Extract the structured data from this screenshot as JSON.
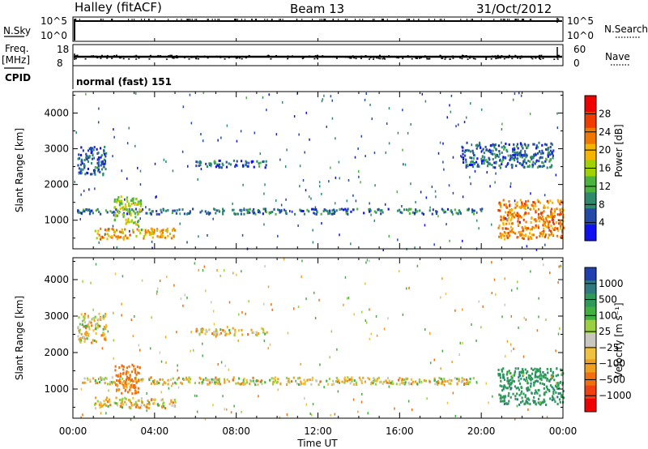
{
  "header": {
    "station": "Halley (fitACF)",
    "beam": "Beam 13",
    "date": "31/Oct/2012"
  },
  "strip": {
    "nsky_label": "N.Sky",
    "nsky_ticks": [
      "10^5",
      "10^0"
    ],
    "nsearch_label": "N.Search",
    "freq_label_1": "Freq.",
    "freq_label_2": "[MHz]",
    "freq_ticks": [
      "18",
      "8"
    ],
    "nave_label": "Nave",
    "nave_ticks": [
      "60",
      "0"
    ],
    "cpid_label": "CPID",
    "cpid_value": "normal (fast) 151"
  },
  "panels": {
    "power": {
      "ylabel": "Slant Range [km]",
      "cbar_label": "Power [dB]",
      "cbar_ticks": [
        "28",
        "24",
        "20",
        "16",
        "12",
        "8",
        "4"
      ],
      "cbar_colors": [
        "#f00000",
        "#f03c00",
        "#f07800",
        "#f5b400",
        "#a0d200",
        "#4cb43c",
        "#2e8a6a",
        "#234aa8",
        "#1010f0"
      ]
    },
    "velocity": {
      "ylabel": "Slant Range [km]",
      "cbar_label": "Velocity [m s⁻¹]",
      "cbar_ticks": [
        "1000",
        "500",
        "100",
        "25",
        "−25",
        "−100",
        "−500",
        "−1000"
      ],
      "cbar_colors": [
        "#2040b0",
        "#2e7a80",
        "#2e9a5a",
        "#40b040",
        "#9ad040",
        "#c8c8c0",
        "#f0c040",
        "#f0a020",
        "#f07010",
        "#f04010",
        "#f00000"
      ]
    }
  },
  "x_axis": {
    "label": "Time UT",
    "ticks": [
      "00:00",
      "04:00",
      "08:00",
      "12:00",
      "16:00",
      "20:00",
      "00:00"
    ]
  },
  "chart_data": [
    {
      "type": "heatmap",
      "quantity": "Power",
      "unit": "dB",
      "x": [
        "00:00",
        "04:00",
        "08:00",
        "12:00",
        "16:00",
        "20:00",
        "00:00"
      ],
      "xlabel": "Time UT",
      "ylabel": "Slant Range [km]",
      "yticks": [
        1000,
        2000,
        3000,
        4000
      ],
      "ylim": [
        200,
        4600
      ],
      "clim": [
        0,
        30
      ],
      "colorbar_ticks": [
        4,
        8,
        12,
        16,
        20,
        24,
        28
      ],
      "features": [
        {
          "time_h": [
            0.2,
            20.0
          ],
          "range_km": [
            1200,
            1350
          ],
          "level_db": 6
        },
        {
          "time_h": [
            1.0,
            5.0
          ],
          "range_km": [
            500,
            800
          ],
          "level_db": 20
        },
        {
          "time_h": [
            2.0,
            3.3
          ],
          "range_km": [
            900,
            1700
          ],
          "level_db": 14
        },
        {
          "time_h": [
            20.8,
            24.0
          ],
          "range_km": [
            500,
            1600
          ],
          "level_db": 22
        },
        {
          "time_h": [
            0.2,
            1.6
          ],
          "range_km": [
            2300,
            3100
          ],
          "level_db": 5
        },
        {
          "time_h": [
            6.0,
            9.5
          ],
          "range_km": [
            2500,
            2700
          ],
          "level_db": 5
        },
        {
          "time_h": [
            19.0,
            23.5
          ],
          "range_km": [
            2500,
            3200
          ],
          "level_db": 5
        }
      ]
    },
    {
      "type": "heatmap",
      "quantity": "Velocity",
      "unit": "m s-1",
      "x": [
        "00:00",
        "04:00",
        "08:00",
        "12:00",
        "16:00",
        "20:00",
        "00:00"
      ],
      "xlabel": "Time UT",
      "ylabel": "Slant Range [km]",
      "yticks": [
        1000,
        2000,
        3000,
        4000
      ],
      "ylim": [
        200,
        4600
      ],
      "colorbar_ticks": [
        1000,
        500,
        100,
        25,
        -25,
        -100,
        -500,
        -1000
      ],
      "features": [
        {
          "time_h": [
            0.2,
            20.0
          ],
          "range_km": [
            1150,
            1350
          ],
          "velocity": 0
        },
        {
          "time_h": [
            1.0,
            5.0
          ],
          "range_km": [
            500,
            800
          ],
          "velocity": 0
        },
        {
          "time_h": [
            2.0,
            3.3
          ],
          "range_km": [
            900,
            1700
          ],
          "velocity": -150
        },
        {
          "time_h": [
            20.8,
            24.0
          ],
          "range_km": [
            600,
            1600
          ],
          "velocity": 300
        },
        {
          "time_h": [
            0.2,
            1.6
          ],
          "range_km": [
            2300,
            3100
          ],
          "velocity": 0
        },
        {
          "time_h": [
            6.0,
            9.5
          ],
          "range_km": [
            2500,
            2700
          ],
          "velocity": 0
        }
      ]
    }
  ]
}
